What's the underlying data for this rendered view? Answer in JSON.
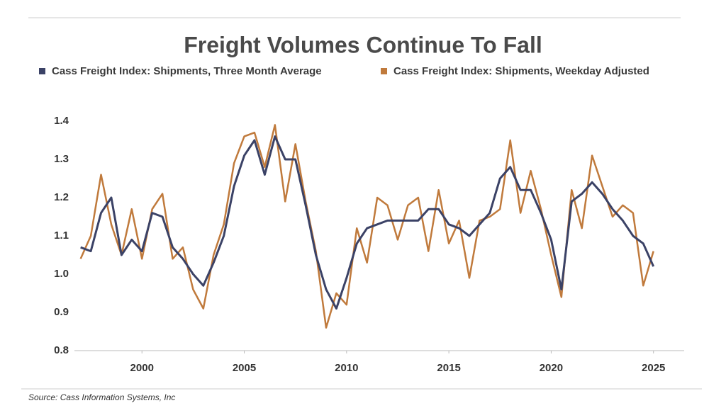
{
  "chart_data": {
    "type": "line",
    "title": "Freight Volumes Continue To Fall",
    "source": "Source: Cass Information Systems, Inc",
    "x": [
      1997,
      1997.5,
      1998,
      1998.5,
      1999,
      1999.5,
      2000,
      2000.5,
      2001,
      2001.5,
      2002,
      2002.5,
      2003,
      2003.5,
      2004,
      2004.5,
      2005,
      2005.5,
      2006,
      2006.5,
      2007,
      2007.5,
      2008,
      2008.5,
      2009,
      2009.5,
      2010,
      2010.5,
      2011,
      2011.5,
      2012,
      2012.5,
      2013,
      2013.5,
      2014,
      2014.5,
      2015,
      2015.5,
      2016,
      2016.5,
      2017,
      2017.5,
      2018,
      2018.5,
      2019,
      2019.5,
      2020,
      2020.5,
      2021,
      2021.5,
      2022,
      2022.5,
      2023,
      2023.5,
      2024,
      2024.5,
      2025
    ],
    "series": [
      {
        "name": "Cass Freight Index: Shipments, Three Month Average",
        "color": "#3b4266",
        "values": [
          1.07,
          1.06,
          1.16,
          1.2,
          1.05,
          1.09,
          1.06,
          1.16,
          1.15,
          1.07,
          1.04,
          1.0,
          0.97,
          1.03,
          1.1,
          1.23,
          1.31,
          1.35,
          1.26,
          1.36,
          1.3,
          1.3,
          1.18,
          1.05,
          0.96,
          0.91,
          0.99,
          1.08,
          1.12,
          1.13,
          1.14,
          1.14,
          1.14,
          1.14,
          1.17,
          1.17,
          1.13,
          1.12,
          1.1,
          1.13,
          1.16,
          1.25,
          1.28,
          1.22,
          1.22,
          1.16,
          1.09,
          0.96,
          1.19,
          1.21,
          1.24,
          1.21,
          1.17,
          1.14,
          1.1,
          1.08,
          1.02
        ]
      },
      {
        "name": "Cass Freight Index: Shipments, Weekday Adjusted",
        "color": "#c07a3c",
        "values": [
          1.04,
          1.1,
          1.26,
          1.13,
          1.05,
          1.17,
          1.04,
          1.17,
          1.21,
          1.04,
          1.07,
          0.96,
          0.91,
          1.05,
          1.13,
          1.29,
          1.36,
          1.37,
          1.28,
          1.39,
          1.19,
          1.34,
          1.19,
          1.06,
          0.86,
          0.95,
          0.92,
          1.12,
          1.03,
          1.2,
          1.18,
          1.09,
          1.18,
          1.2,
          1.06,
          1.22,
          1.08,
          1.14,
          0.99,
          1.14,
          1.15,
          1.17,
          1.35,
          1.16,
          1.27,
          1.17,
          1.05,
          0.94,
          1.22,
          1.12,
          1.31,
          1.23,
          1.15,
          1.18,
          1.16,
          0.97,
          1.06
        ]
      }
    ],
    "xlim": [
      1996.7,
      2026.5
    ],
    "xticks": [
      2000,
      2005,
      2010,
      2015,
      2020,
      2025
    ],
    "ylim": [
      0.8,
      1.4
    ],
    "yticks": [
      0.8,
      0.9,
      {
        "value": 1,
        "label": "1.0"
      },
      1.1,
      1.2,
      1.3,
      1.4
    ],
    "grid": false
  }
}
